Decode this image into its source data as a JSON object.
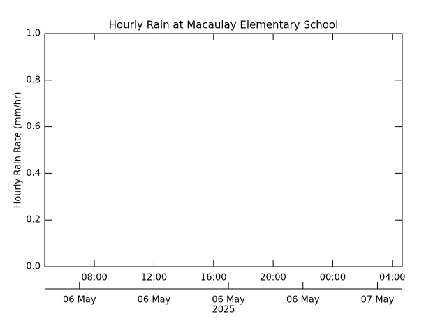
{
  "chart_data": {
    "type": "line",
    "title": "Hourly Rain at Macaulay Elementary School",
    "y_label": "Hourly Rain Rate (mm/hr)",
    "series": [],
    "xlim": [
      4.667,
      28.667
    ],
    "xticks": [
      {
        "value": 8,
        "label": "08:00"
      },
      {
        "value": 12,
        "label": "12:00"
      },
      {
        "value": 16,
        "label": "16:00"
      },
      {
        "value": 20,
        "label": "20:00"
      },
      {
        "value": 24,
        "label": "00:00"
      },
      {
        "value": 28,
        "label": "04:00"
      }
    ],
    "x2ticks": [
      {
        "value": 7,
        "label": "06 May"
      },
      {
        "value": 12,
        "label": "06 May"
      },
      {
        "value": 17,
        "label": "06 May"
      },
      {
        "value": 22,
        "label": "06 May"
      },
      {
        "value": 27,
        "label": "07 May"
      }
    ],
    "x2_year": "2025",
    "ylim": [
      0,
      1
    ],
    "yticks": [
      {
        "value": 0,
        "label": "0.0"
      },
      0.2,
      0.4,
      0.6,
      0.8,
      {
        "value": 1,
        "label": "1.0"
      }
    ]
  }
}
